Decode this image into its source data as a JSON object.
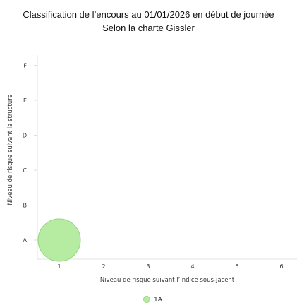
{
  "chart_data": {
    "type": "scatter",
    "title": "Classification de l’encours au 01/01/2026 en début de journée",
    "subtitle": "Selon la charte Gissler",
    "xlabel": "Niveau de risque suivant l’indice sous-jacent",
    "ylabel": "Niveau de risque suivant la structure",
    "x_ticks": [
      "1",
      "2",
      "3",
      "4",
      "5",
      "6"
    ],
    "y_categories": [
      "A",
      "B",
      "C",
      "D",
      "E",
      "F"
    ],
    "grid": false,
    "legend_position": "bottom-center",
    "series": [
      {
        "name": "1A",
        "color": "#b5eca2",
        "stroke": "#93d67c",
        "points": [
          {
            "x": 1,
            "y": "A",
            "size": 1
          }
        ]
      }
    ]
  }
}
